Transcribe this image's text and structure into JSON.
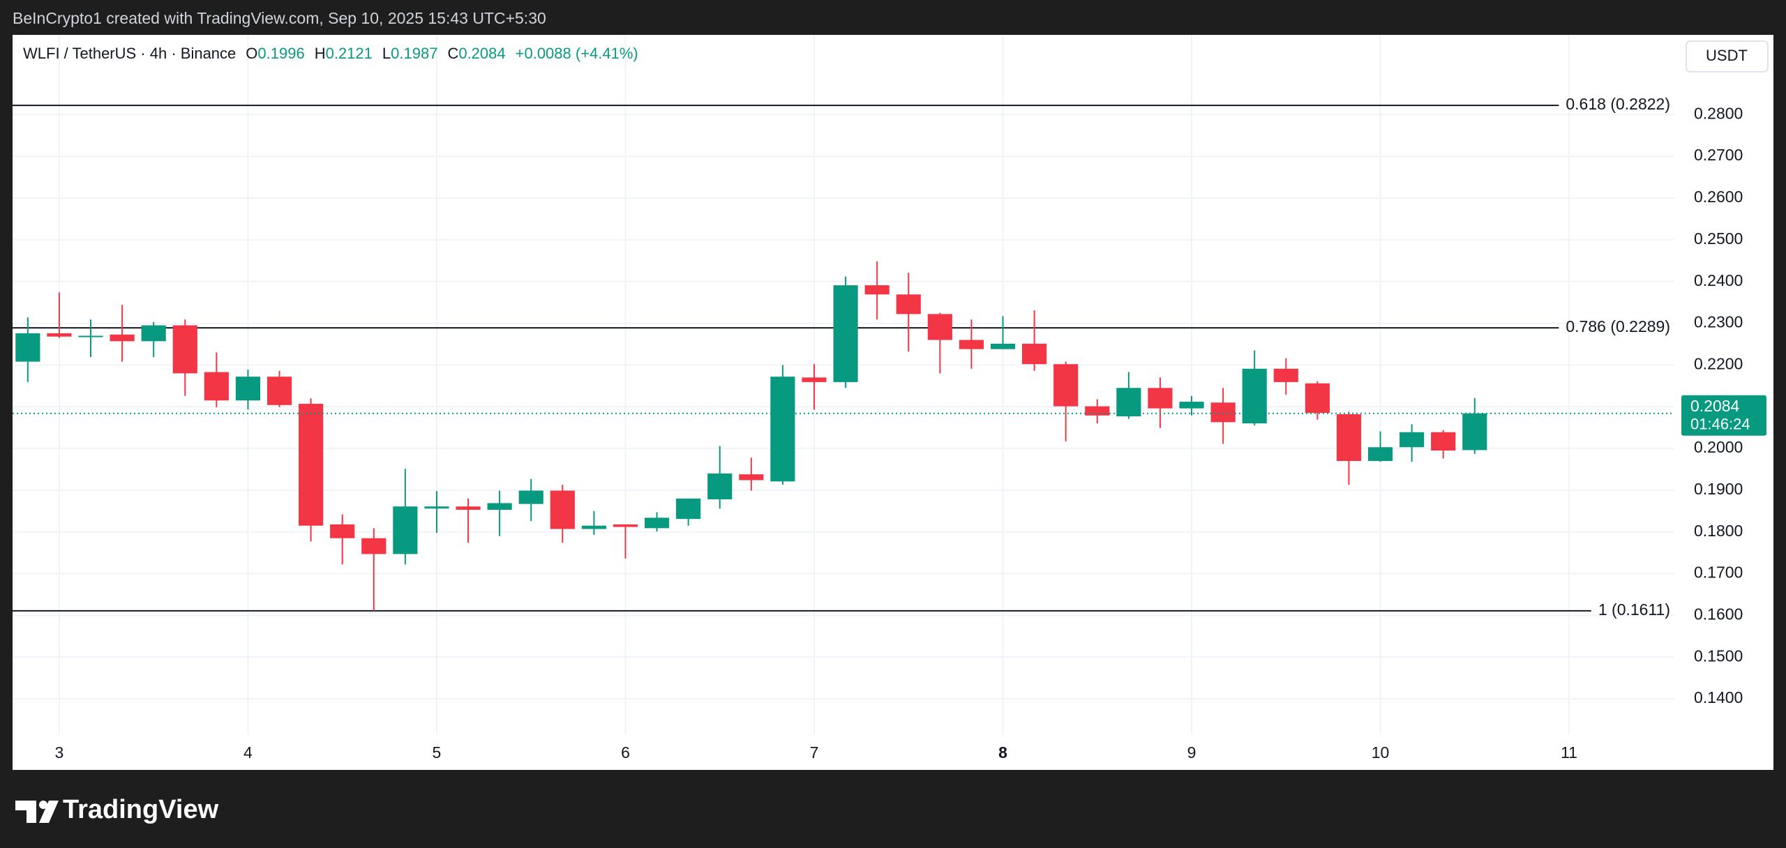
{
  "header": {
    "attribution": "BeInCrypto1 created with TradingView.com, Sep 10, 2025 15:43 UTC+5:30"
  },
  "footer": {
    "logo_text": "TradingView"
  },
  "chart_data": {
    "type": "candlestick",
    "title": "WLFI / TetherUS · 4h · Binance",
    "ohlc_labels": [
      "O",
      "H",
      "L",
      "C"
    ],
    "change": "+0.0088 (+4.41%)",
    "currency": "USDT",
    "last_price_countdown": "01:46:24",
    "up_color": "#089981",
    "down_color": "#f23645",
    "grid": true,
    "x": [
      2.8333,
      3,
      3.1667,
      3.3333,
      3.5,
      3.6667,
      3.8333,
      4,
      4.1667,
      4.3333,
      4.5,
      4.6667,
      4.8333,
      5,
      5.1667,
      5.3333,
      5.5,
      5.6667,
      5.8333,
      6,
      6.1667,
      6.3333,
      6.5,
      6.6667,
      6.8333,
      7,
      7.1667,
      7.3333,
      7.5,
      7.6667,
      7.8333,
      8,
      8.1667,
      8.3333,
      8.5,
      8.6667,
      8.8333,
      9,
      9.1667,
      9.3333,
      9.5,
      9.6667,
      9.8333,
      10,
      10.1667,
      10.3333,
      10.5
    ],
    "open": [
      0.2208,
      0.2276,
      0.2268,
      0.2273,
      0.2257,
      0.2295,
      0.2183,
      0.2115,
      0.2172,
      0.2107,
      0.1818,
      0.1785,
      0.1747,
      0.1856,
      0.1861,
      0.1853,
      0.1867,
      0.1899,
      0.1807,
      0.1818,
      0.1809,
      0.1831,
      0.1878,
      0.1938,
      0.1921,
      0.217,
      0.2159,
      0.2391,
      0.2369,
      0.2322,
      0.226,
      0.2238,
      0.2251,
      0.2202,
      0.2101,
      0.2077,
      0.2145,
      0.2096,
      0.211,
      0.206,
      0.2191,
      0.2156,
      0.2082,
      0.197,
      0.2003,
      0.2039,
      0.1996
    ],
    "high": [
      0.2314,
      0.2374,
      0.2309,
      0.2344,
      0.2303,
      0.2309,
      0.223,
      0.2189,
      0.2186,
      0.212,
      0.1842,
      0.1809,
      0.1951,
      0.1898,
      0.188,
      0.1899,
      0.1927,
      0.1913,
      0.185,
      0.1818,
      0.1847,
      0.188,
      0.2006,
      0.1978,
      0.22,
      0.2202,
      0.2412,
      0.2448,
      0.2421,
      0.2325,
      0.2309,
      0.2317,
      0.2331,
      0.2208,
      0.2118,
      0.2183,
      0.217,
      0.2126,
      0.2145,
      0.2235,
      0.2216,
      0.2161,
      0.2088,
      0.2041,
      0.2058,
      0.2044,
      0.2121
    ],
    "low": [
      0.2159,
      0.2265,
      0.2219,
      0.2208,
      0.2219,
      0.2126,
      0.2099,
      0.2093,
      0.2099,
      0.1777,
      0.1722,
      0.1611,
      0.1722,
      0.1798,
      0.1774,
      0.179,
      0.1826,
      0.1774,
      0.1793,
      0.1736,
      0.1801,
      0.1815,
      0.1856,
      0.1899,
      0.1913,
      0.2093,
      0.2145,
      0.2309,
      0.2232,
      0.218,
      0.2191,
      0.2238,
      0.2186,
      0.2017,
      0.206,
      0.2071,
      0.2049,
      0.2079,
      0.2011,
      0.2055,
      0.2129,
      0.2069,
      0.1913,
      0.1968,
      0.1968,
      0.1976,
      0.1987
    ],
    "close": [
      0.2276,
      0.2268,
      0.227,
      0.2257,
      0.2295,
      0.218,
      0.2115,
      0.2172,
      0.2104,
      0.1815,
      0.1785,
      0.1747,
      0.1861,
      0.1861,
      0.1853,
      0.1869,
      0.1899,
      0.1807,
      0.1815,
      0.1812,
      0.1834,
      0.188,
      0.194,
      0.1924,
      0.2172,
      0.2159,
      0.2391,
      0.2369,
      0.2322,
      0.226,
      0.2238,
      0.2251,
      0.2202,
      0.2101,
      0.2079,
      0.2145,
      0.2096,
      0.2112,
      0.2063,
      0.2191,
      0.2159,
      0.2085,
      0.197,
      0.2003,
      0.2039,
      0.1995,
      0.2084
    ],
    "xlim": [
      2.7526,
      11.558
    ],
    "xticks": [
      3,
      4,
      5,
      6,
      7,
      8,
      9,
      10,
      11
    ],
    "ylim": [
      0.1315,
      0.2991
    ],
    "yticks": [
      {
        "value": 0.14,
        "label": "0.1400"
      },
      {
        "value": 0.15,
        "label": "0.1500"
      },
      {
        "value": 0.16,
        "label": "0.1600"
      },
      {
        "value": 0.17,
        "label": "0.1700"
      },
      {
        "value": 0.18,
        "label": "0.1800"
      },
      {
        "value": 0.19,
        "label": "0.1900"
      },
      {
        "value": 0.2,
        "label": "0.2000"
      },
      {
        "value": 0.21,
        "label": "0.2100"
      },
      {
        "value": 0.22,
        "label": "0.2200"
      },
      {
        "value": 0.23,
        "label": "0.2300"
      },
      {
        "value": 0.24,
        "label": "0.2400"
      },
      {
        "value": 0.25,
        "label": "0.2500"
      },
      {
        "value": 0.26,
        "label": "0.2600"
      },
      {
        "value": 0.27,
        "label": "0.2700"
      },
      {
        "value": 0.28,
        "label": "0.2800"
      }
    ],
    "annotations": [
      {
        "label": "0.618 (0.2822)",
        "value": 0.2822
      },
      {
        "label": "0.786 (0.2289)",
        "value": 0.2289
      },
      {
        "label": "1 (0.1611)",
        "value": 0.1611
      }
    ]
  }
}
